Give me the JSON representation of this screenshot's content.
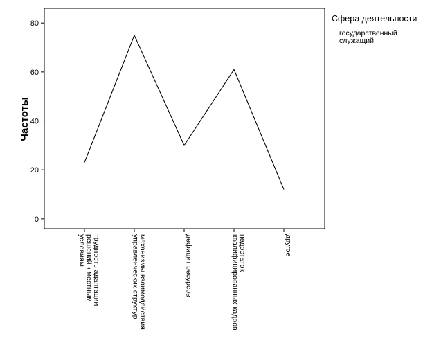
{
  "chart_data": {
    "type": "line",
    "ylabel": "Частоты",
    "xlabel": "",
    "ylim": [
      -4,
      86
    ],
    "yticks": [
      0,
      20,
      40,
      60,
      80
    ],
    "categories": [
      [
        "трудность адаптации",
        "решений к местным",
        "условиям"
      ],
      [
        "механизмы взаимодействия",
        "управленческих структур"
      ],
      [
        "дефицит ресурсов"
      ],
      [
        "недостаток",
        "квалифицированных кадров"
      ],
      [
        "другое"
      ]
    ],
    "series": [
      {
        "name": "государственный служащий",
        "values": [
          23,
          75,
          30,
          61,
          12
        ]
      }
    ],
    "legend": {
      "title": "Сфера деятельности",
      "entries": [
        [
          "государственный",
          "служащий"
        ]
      ],
      "placement": "right"
    },
    "grid": false
  }
}
